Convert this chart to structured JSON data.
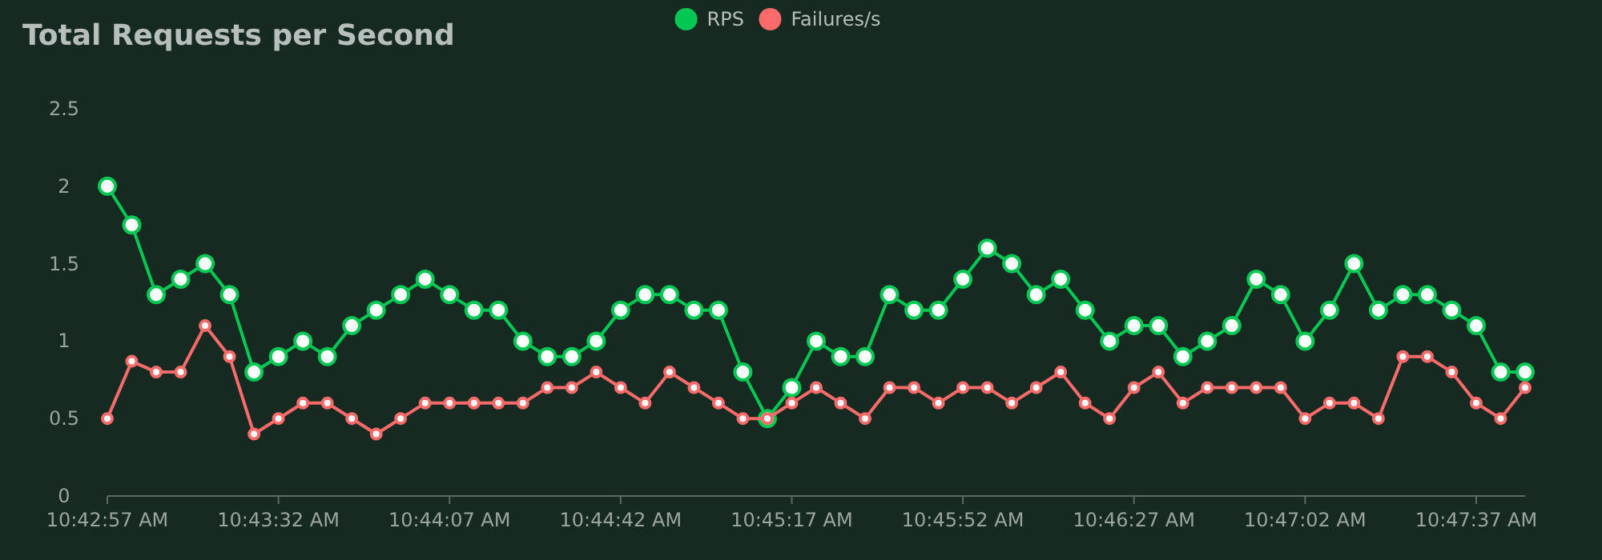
{
  "chart_data": {
    "type": "line",
    "title": "Total Requests per Second",
    "categories": [
      "10:42:57 AM",
      null,
      null,
      null,
      null,
      null,
      null,
      "10:43:32 AM",
      null,
      null,
      null,
      null,
      null,
      null,
      "10:44:07 AM",
      null,
      null,
      null,
      null,
      null,
      null,
      "10:44:42 AM",
      null,
      null,
      null,
      null,
      null,
      null,
      "10:45:17 AM",
      null,
      null,
      null,
      null,
      null,
      null,
      "10:45:52 AM",
      null,
      null,
      null,
      null,
      null,
      null,
      "10:46:27 AM",
      null,
      null,
      null,
      null,
      null,
      null,
      "10:47:02 AM",
      null,
      null,
      null,
      null,
      null,
      null,
      "10:47:37 AM",
      null,
      null
    ],
    "series": [
      {
        "name": "RPS",
        "color": "#00c853",
        "values": [
          2.0,
          1.75,
          1.3,
          1.4,
          1.5,
          1.3,
          0.8,
          0.9,
          1.0,
          0.9,
          1.1,
          1.2,
          1.3,
          1.4,
          1.3,
          1.2,
          1.2,
          1.0,
          0.9,
          0.9,
          1.0,
          1.2,
          1.3,
          1.3,
          1.2,
          1.2,
          0.8,
          0.5,
          0.7,
          1.0,
          0.9,
          0.9,
          1.3,
          1.2,
          1.2,
          1.4,
          1.6,
          1.5,
          1.3,
          1.4,
          1.2,
          1.0,
          1.1,
          1.1,
          0.9,
          1.0,
          1.1,
          1.4,
          1.3,
          1.0,
          1.2,
          1.5,
          1.2,
          1.3,
          1.3,
          1.2,
          1.1,
          0.8,
          0.8
        ]
      },
      {
        "name": "Failures/s",
        "color": "#ff6b6b",
        "values": [
          0.5,
          0.87,
          0.8,
          0.8,
          1.1,
          0.9,
          0.4,
          0.5,
          0.6,
          0.6,
          0.5,
          0.4,
          0.5,
          0.6,
          0.6,
          0.6,
          0.6,
          0.6,
          0.7,
          0.7,
          0.8,
          0.7,
          0.6,
          0.8,
          0.7,
          0.6,
          0.5,
          0.5,
          0.6,
          0.7,
          0.6,
          0.5,
          0.7,
          0.7,
          0.6,
          0.7,
          0.7,
          0.6,
          0.7,
          0.8,
          0.6,
          0.5,
          0.7,
          0.8,
          0.6,
          0.7,
          0.7,
          0.7,
          0.7,
          0.5,
          0.6,
          0.6,
          0.5,
          0.9,
          0.9,
          0.8,
          0.6,
          0.5,
          0.7
        ]
      }
    ],
    "ylim": [
      0,
      2.5
    ],
    "yticks": [
      0,
      0.5,
      1,
      1.5,
      2,
      2.5
    ],
    "grid": false,
    "legend": "top",
    "marker": "circle",
    "line_style": "solid"
  }
}
